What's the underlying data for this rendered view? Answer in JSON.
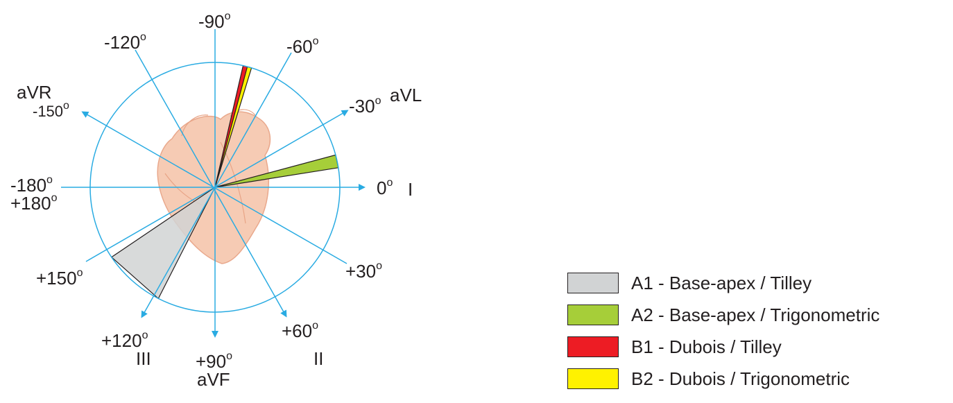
{
  "diagram": {
    "axis_color": "#29abe2",
    "angle_labels": {
      "deg_neg90": "-90",
      "deg_neg120": "-120",
      "deg_neg60": "-60",
      "deg_neg150": "-150",
      "deg_neg30": "-30",
      "deg_neg180": "-180",
      "deg_pos180": "+180",
      "deg_0": "0",
      "deg_pos30": "+30",
      "deg_pos150": "+150",
      "deg_pos120": "+120",
      "deg_pos90": "+90",
      "deg_pos60": "+60",
      "degree_symbol": "o"
    },
    "lead_labels": {
      "avr": "aVR",
      "avl": "aVL",
      "lead_i": "I",
      "lead_ii": "II",
      "lead_iii": "III",
      "avf": "aVF"
    },
    "heart_icon": "heart-icon",
    "sectors": [
      {
        "key": "A1",
        "color": "#d1d3d4",
        "from_deg": 117,
        "to_deg": 146
      },
      {
        "key": "A2",
        "color": "#a6ce39",
        "from_deg": -15,
        "to_deg": -9
      },
      {
        "key": "B1",
        "color": "#ed1c24",
        "from_deg": -77,
        "to_deg": -74
      },
      {
        "key": "B2",
        "color": "#fff200",
        "from_deg": -75,
        "to_deg": -73
      }
    ]
  },
  "legend": {
    "items": [
      {
        "label": "A1 - Base-apex / Tilley",
        "color": "#d1d3d4"
      },
      {
        "label": "A2 - Base-apex / Trigonometric",
        "color": "#a6ce39"
      },
      {
        "label": "B1 - Dubois / Tilley",
        "color": "#ed1c24"
      },
      {
        "label": "B2 - Dubois / Trigonometric",
        "color": "#fff200"
      }
    ]
  }
}
